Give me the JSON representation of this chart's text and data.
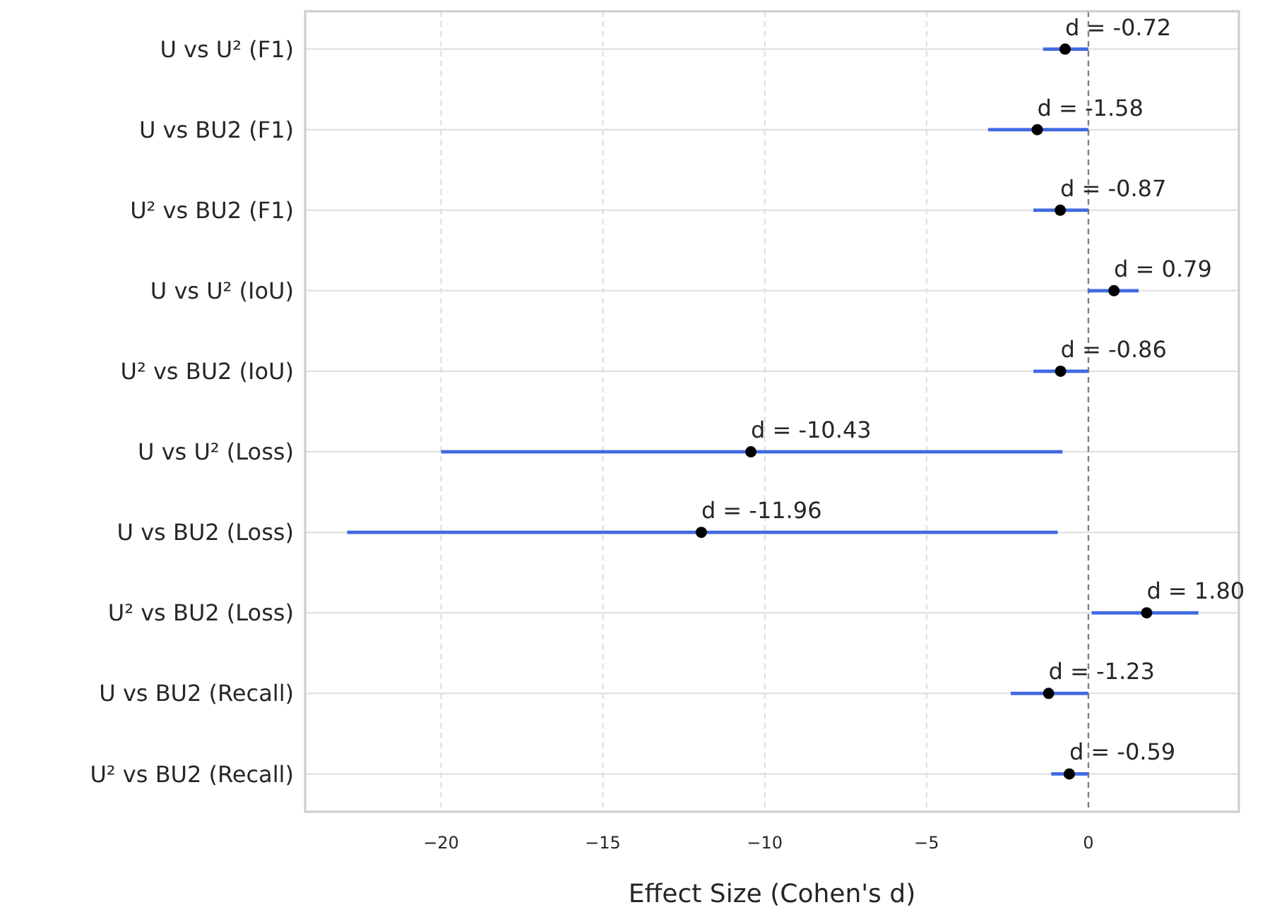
{
  "chart_data": {
    "type": "scatter",
    "orientation": "horizontal",
    "xlabel": "Effect Size (Cohen's d)",
    "categories": [
      "U vs U² (F1)",
      "U vs BU2 (F1)",
      "U² vs BU2 (F1)",
      "U vs U² (IoU)",
      "U² vs BU2 (IoU)",
      "U vs U² (Loss)",
      "U vs BU2 (Loss)",
      "U² vs BU2 (Loss)",
      "U vs BU2 (Recall)",
      "U² vs BU2 (Recall)"
    ],
    "series": [
      {
        "type": "bar",
        "color": "#4169e1",
        "base": [
          -1.4,
          -3.1,
          -1.7,
          0.0,
          -1.7,
          -20.0,
          -22.9,
          0.1,
          -2.4,
          -1.15
        ],
        "values": [
          1.4,
          3.1,
          1.7,
          1.55,
          1.7,
          19.2,
          21.95,
          3.3,
          2.4,
          1.15
        ]
      },
      {
        "type": "scatter",
        "color": "#000000",
        "marker": "circle",
        "values": [
          -0.72,
          -1.58,
          -0.87,
          0.79,
          -0.86,
          -10.43,
          -11.96,
          1.8,
          -1.23,
          -0.59
        ],
        "value_labels": [
          "d = -0.72",
          "d = -1.58",
          "d = -0.87",
          "d = 0.79",
          "d = -0.86",
          "d = -10.43",
          "d = -11.96",
          "d = 1.80",
          "d = -1.23",
          "d = -0.59"
        ]
      }
    ],
    "xlim": [
      -24.2,
      4.65
    ],
    "xticks": [
      {
        "value": -20,
        "label": "−20"
      },
      {
        "value": -15,
        "label": "−15"
      },
      {
        "value": -10,
        "label": "−10"
      },
      {
        "value": -5,
        "label": "−5"
      },
      0
    ],
    "grid": true,
    "ref_lines": [
      {
        "axis": "x",
        "value": 0,
        "color": "#808080",
        "line_style": "dashed"
      }
    ]
  }
}
